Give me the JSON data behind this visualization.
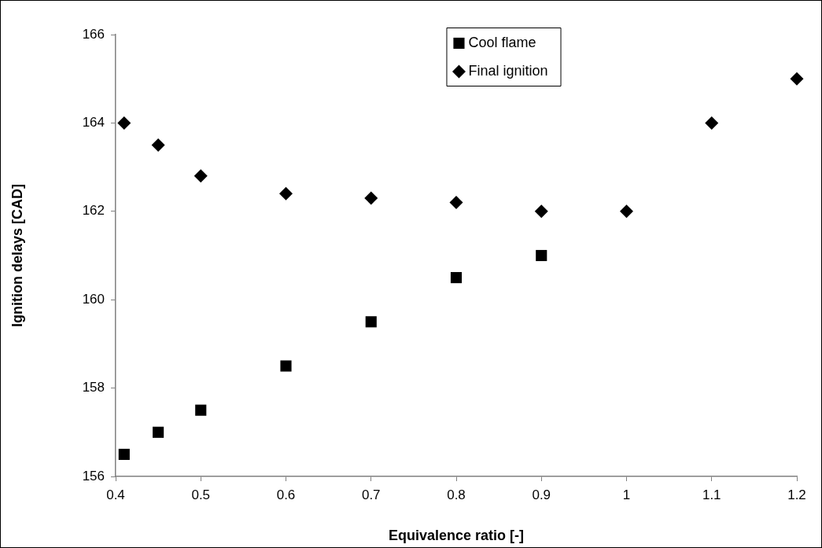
{
  "chart_data": {
    "type": "scatter",
    "xlabel": "Equivalence ratio [-]",
    "ylabel": "Ignition delays [CAD]",
    "xlim": [
      0.4,
      1.2
    ],
    "xticks": [
      0.4,
      0.5,
      0.6,
      0.7,
      0.8,
      0.9,
      1,
      1.1,
      1.2
    ],
    "ylim": [
      156,
      166
    ],
    "yticks": [
      156,
      158,
      160,
      162,
      164,
      166
    ],
    "grid": false,
    "legend": "top",
    "series": [
      {
        "name": "Cool flame",
        "color": "#000000",
        "marker": "square",
        "x": [
          0.41,
          0.45,
          0.5,
          0.6,
          0.7,
          0.8,
          0.9
        ],
        "values": [
          156.5,
          157,
          157.5,
          158.5,
          159.5,
          160.5,
          161
        ]
      },
      {
        "name": "Final ignition",
        "color": "#000000",
        "marker": "diamond",
        "x": [
          0.41,
          0.45,
          0.5,
          0.6,
          0.7,
          0.8,
          0.9,
          1,
          1.1,
          1.2
        ],
        "values": [
          164,
          163.5,
          162.8,
          162.4,
          162.3,
          162.2,
          162,
          162,
          164,
          165
        ]
      }
    ]
  }
}
